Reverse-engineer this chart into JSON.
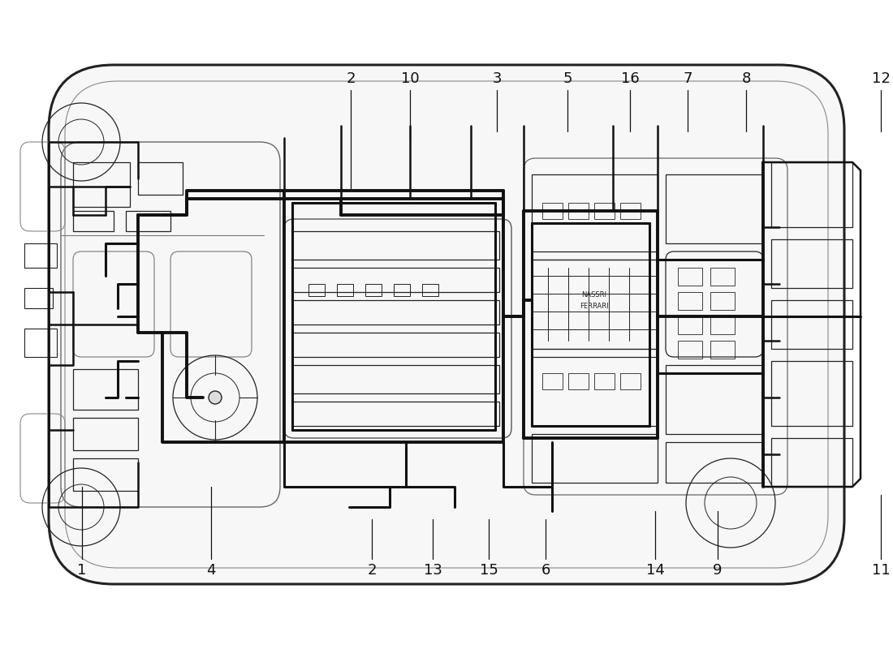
{
  "background_color": "#ffffff",
  "car_color": "#222222",
  "wire_color": "#111111",
  "label_color": "#111111",
  "thin_color": "#444444",
  "wm_yellow": "#ecec9e",
  "wm_gray": "#c8c8c8",
  "figsize": [
    11.0,
    8.0
  ],
  "dpi": 100,
  "top_labels": [
    {
      "num": "2",
      "xf": 0.393,
      "connect_xf": 0.393,
      "connect_yf": 0.81
    },
    {
      "num": "10",
      "xf": 0.46,
      "connect_xf": 0.46,
      "connect_yf": 0.81
    },
    {
      "num": "3",
      "xf": 0.556,
      "connect_xf": 0.556,
      "connect_yf": 0.81
    },
    {
      "num": "5",
      "xf": 0.636,
      "connect_xf": 0.636,
      "connect_yf": 0.81
    },
    {
      "num": "16",
      "xf": 0.706,
      "connect_xf": 0.706,
      "connect_yf": 0.81
    },
    {
      "num": "7",
      "xf": 0.771,
      "connect_xf": 0.771,
      "connect_yf": 0.81
    },
    {
      "num": "8",
      "xf": 0.836,
      "connect_xf": 0.836,
      "connect_yf": 0.81
    },
    {
      "num": "12",
      "xf": 0.988,
      "connect_xf": 0.988,
      "connect_yf": 0.81
    }
  ],
  "bottom_labels": [
    {
      "num": "1",
      "xf": 0.092,
      "connect_xf": 0.092,
      "connect_yf": 0.19
    },
    {
      "num": "4",
      "xf": 0.237,
      "connect_xf": 0.237,
      "connect_yf": 0.19
    },
    {
      "num": "2",
      "xf": 0.416,
      "connect_xf": 0.416,
      "connect_yf": 0.19
    },
    {
      "num": "13",
      "xf": 0.485,
      "connect_xf": 0.485,
      "connect_yf": 0.19
    },
    {
      "num": "15",
      "xf": 0.548,
      "connect_xf": 0.548,
      "connect_yf": 0.19
    },
    {
      "num": "6",
      "xf": 0.611,
      "connect_xf": 0.611,
      "connect_yf": 0.19
    },
    {
      "num": "14",
      "xf": 0.734,
      "connect_xf": 0.734,
      "connect_yf": 0.19
    },
    {
      "num": "9",
      "xf": 0.804,
      "connect_xf": 0.804,
      "connect_yf": 0.19
    },
    {
      "num": "11",
      "xf": 0.988,
      "connect_xf": 0.988,
      "connect_yf": 0.19
    }
  ]
}
